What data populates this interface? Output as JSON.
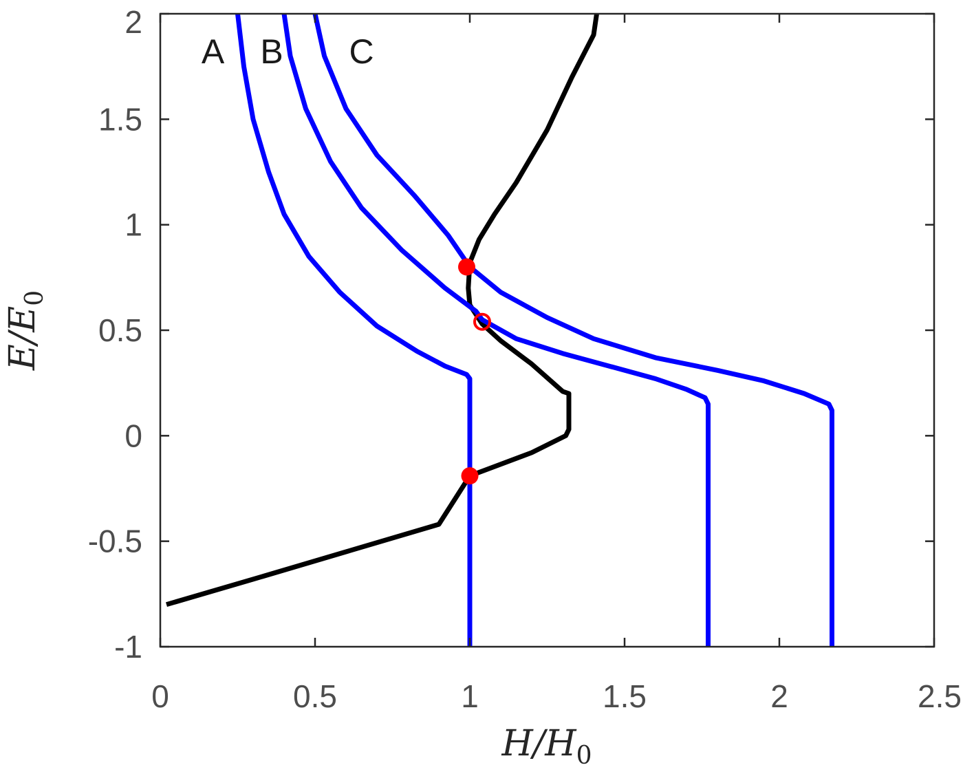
{
  "chart_data": {
    "type": "line",
    "xlabel": "H/H0",
    "ylabel": "E/E0",
    "xlabel_main": "H/H",
    "xlabel_sub": "0",
    "ylabel_main": "E/E",
    "ylabel_sub": "0",
    "xlim": [
      0,
      2.5
    ],
    "ylim": [
      -1,
      2
    ],
    "xticks": [
      0,
      0.5,
      1,
      1.5,
      2,
      2.5
    ],
    "xtick_labels": [
      "0",
      "0.5",
      "1",
      "1.5",
      "2",
      "2.5"
    ],
    "yticks": [
      -1,
      -0.5,
      0,
      0.5,
      1,
      1.5,
      2
    ],
    "ytick_labels": [
      "-1",
      "-0.5",
      "0",
      "0.5",
      "1",
      "1.5",
      "2"
    ],
    "grid": false,
    "curve_labels": [
      {
        "text": "A",
        "x": 0.17,
        "y": 1.82
      },
      {
        "text": "B",
        "x": 0.36,
        "y": 1.82
      },
      {
        "text": "C",
        "x": 0.65,
        "y": 1.82
      }
    ],
    "series": [
      {
        "color": "#000000",
        "points": [
          [
            0.02,
            -0.8
          ],
          [
            0.3,
            -0.68
          ],
          [
            0.6,
            -0.55
          ],
          [
            0.9,
            -0.42
          ],
          [
            1.0,
            -0.19
          ],
          [
            1.2,
            -0.08
          ],
          [
            1.31,
            0.0
          ],
          [
            1.32,
            0.03
          ],
          [
            1.32,
            0.2
          ],
          [
            1.3,
            0.21
          ],
          [
            1.2,
            0.34
          ],
          [
            1.1,
            0.45
          ],
          [
            1.04,
            0.53
          ],
          [
            1.0,
            0.62
          ],
          [
            0.995,
            0.7
          ],
          [
            1.0,
            0.82
          ],
          [
            1.03,
            0.93
          ],
          [
            1.08,
            1.05
          ],
          [
            1.15,
            1.2
          ],
          [
            1.25,
            1.45
          ],
          [
            1.33,
            1.7
          ],
          [
            1.4,
            1.9
          ],
          [
            1.41,
            2.0
          ]
        ]
      },
      {
        "color": "#0000ff",
        "points": [
          [
            0.25,
            2.0
          ],
          [
            0.27,
            1.75
          ],
          [
            0.3,
            1.5
          ],
          [
            0.35,
            1.25
          ],
          [
            0.4,
            1.05
          ],
          [
            0.48,
            0.85
          ],
          [
            0.58,
            0.68
          ],
          [
            0.7,
            0.52
          ],
          [
            0.83,
            0.4
          ],
          [
            0.92,
            0.33
          ],
          [
            0.99,
            0.29
          ],
          [
            1.0,
            0.27
          ],
          [
            1.0,
            -1.0
          ]
        ]
      },
      {
        "color": "#0000ff",
        "points": [
          [
            0.4,
            2.0
          ],
          [
            0.42,
            1.8
          ],
          [
            0.47,
            1.55
          ],
          [
            0.55,
            1.3
          ],
          [
            0.65,
            1.08
          ],
          [
            0.78,
            0.88
          ],
          [
            0.92,
            0.7
          ],
          [
            1.02,
            0.59
          ],
          [
            1.04,
            0.55
          ],
          [
            1.15,
            0.46
          ],
          [
            1.3,
            0.39
          ],
          [
            1.45,
            0.33
          ],
          [
            1.6,
            0.27
          ],
          [
            1.7,
            0.22
          ],
          [
            1.76,
            0.18
          ],
          [
            1.77,
            0.15
          ],
          [
            1.77,
            -1.0
          ]
        ]
      },
      {
        "color": "#0000ff",
        "points": [
          [
            0.5,
            2.0
          ],
          [
            0.53,
            1.8
          ],
          [
            0.6,
            1.55
          ],
          [
            0.7,
            1.33
          ],
          [
            0.82,
            1.14
          ],
          [
            0.93,
            0.95
          ],
          [
            1.0,
            0.8
          ],
          [
            1.1,
            0.68
          ],
          [
            1.25,
            0.56
          ],
          [
            1.4,
            0.46
          ],
          [
            1.6,
            0.37
          ],
          [
            1.8,
            0.31
          ],
          [
            1.95,
            0.26
          ],
          [
            2.08,
            0.2
          ],
          [
            2.16,
            0.15
          ],
          [
            2.17,
            0.12
          ],
          [
            2.17,
            -1.0
          ]
        ]
      }
    ],
    "markers": [
      {
        "x": 0.99,
        "y": 0.8,
        "style": "filled",
        "color": "#ff0000"
      },
      {
        "x": 1.04,
        "y": 0.54,
        "style": "open",
        "color": "#ff0000"
      },
      {
        "x": 1.0,
        "y": -0.19,
        "style": "filled",
        "color": "#ff0000"
      }
    ]
  }
}
